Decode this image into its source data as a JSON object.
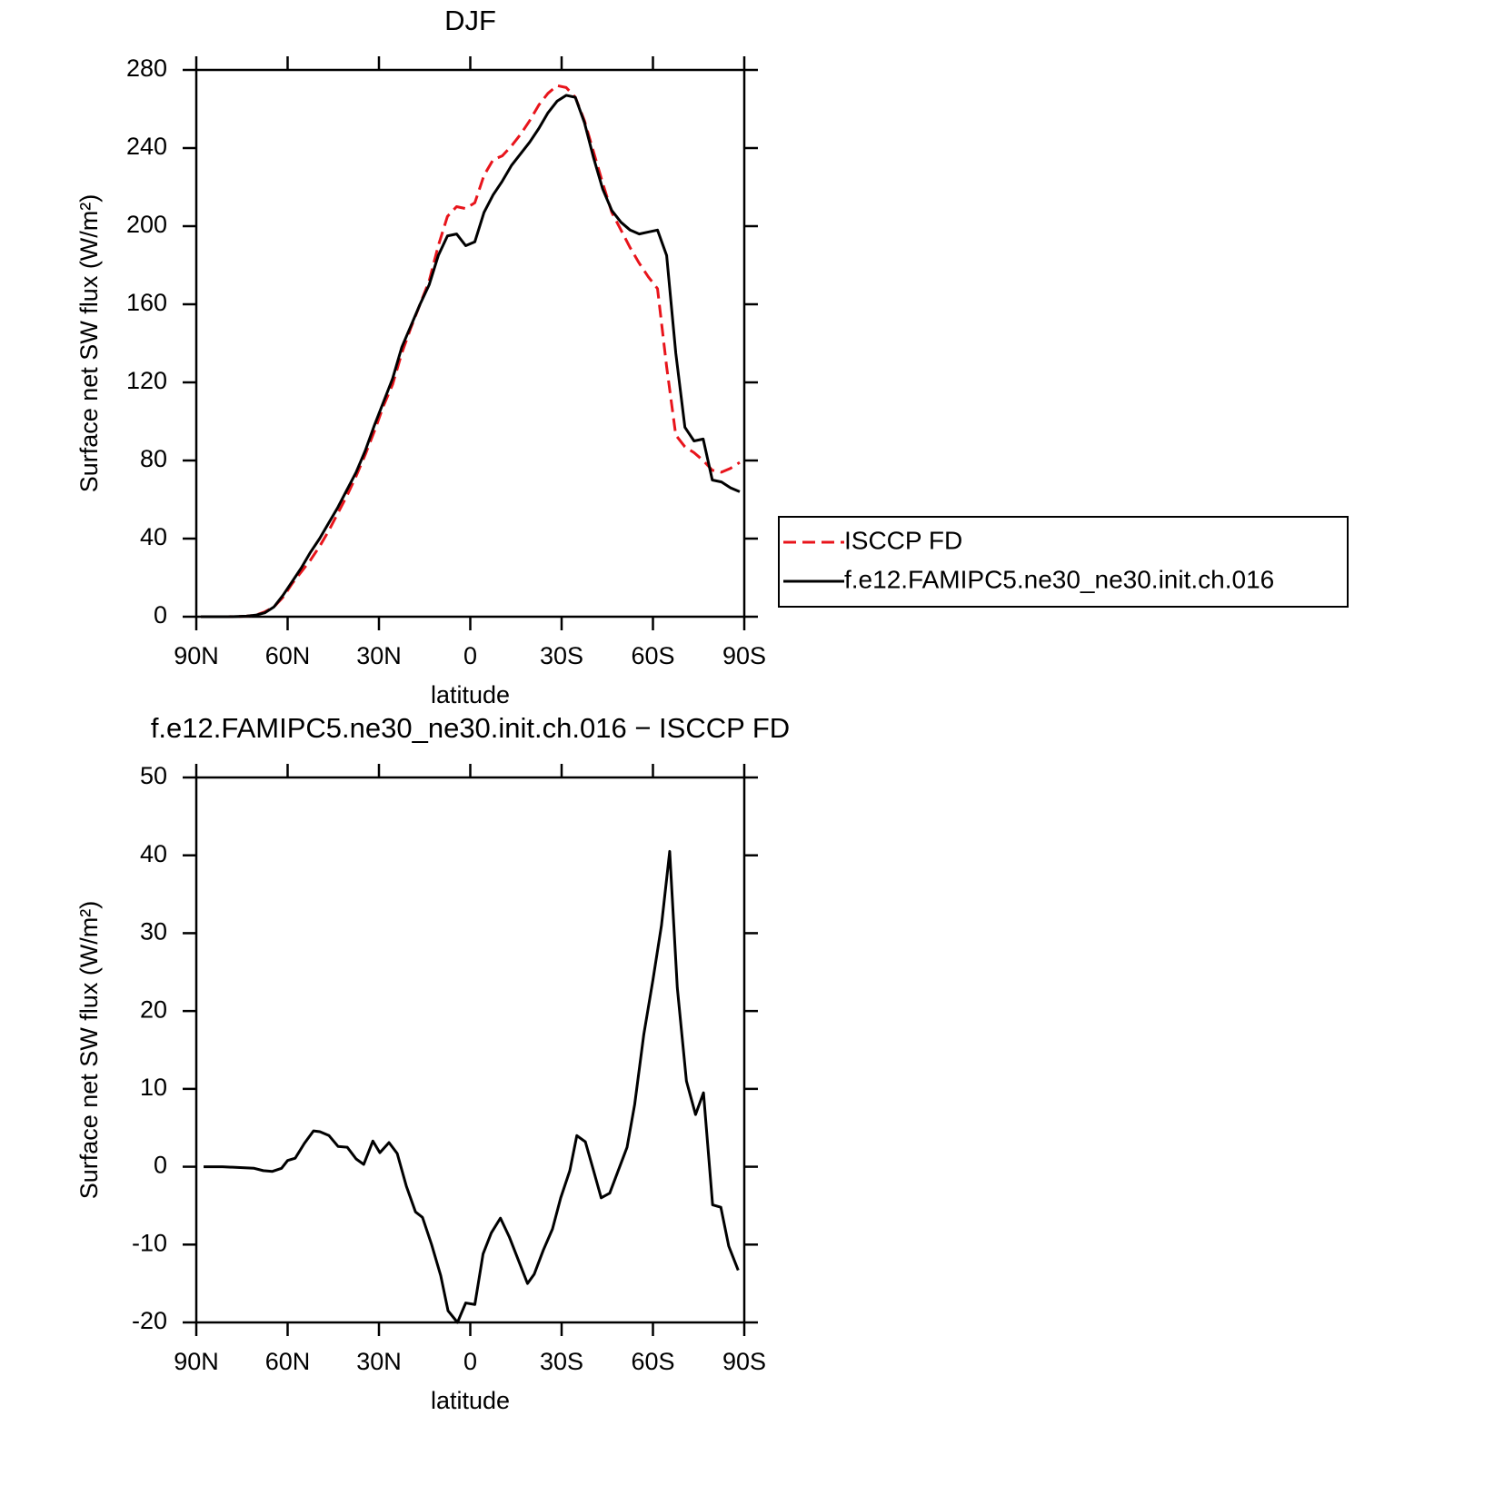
{
  "chart_data": [
    {
      "type": "line",
      "title": "DJF",
      "xlabel": "latitude",
      "ylabel": "Surface net SW flux (W/m²)",
      "x": [
        88.5,
        85.5,
        82.5,
        79.5,
        76.5,
        73.5,
        70.5,
        67.5,
        64.5,
        61.5,
        58.5,
        55.5,
        52.5,
        49.5,
        46.5,
        43.5,
        40.5,
        37.5,
        34.5,
        31.5,
        28.5,
        25.5,
        22.5,
        19.5,
        16.5,
        13.5,
        10.5,
        7.5,
        4.5,
        1.5,
        -1.5,
        -4.5,
        -7.5,
        -10.5,
        -13.5,
        -16.5,
        -19.5,
        -22.5,
        -25.5,
        -28.5,
        -31.5,
        -34.5,
        -37.5,
        -40.5,
        -43.5,
        -46.5,
        -49.5,
        -52.5,
        -55.5,
        -58.5,
        -61.5,
        -64.5,
        -67.5,
        -70.5,
        -73.5,
        -76.5,
        -79.5,
        -82.5,
        -85.5,
        -88.5
      ],
      "series": [
        {
          "name": "ISCCP FD",
          "color": "#e8141b",
          "dash": true,
          "values": [
            0,
            0,
            0,
            0,
            0.1,
            0.3,
            0.8,
            2.5,
            5,
            10,
            17,
            23,
            29,
            36,
            44,
            53,
            62,
            72,
            83,
            95,
            108,
            119,
            135,
            148,
            160,
            172,
            190,
            205,
            210,
            209,
            212,
            226,
            234,
            236,
            241,
            247,
            254,
            262,
            268,
            272,
            271,
            266,
            254,
            238,
            222,
            207,
            198,
            189,
            181,
            174,
            168,
            128,
            93,
            87,
            84,
            80,
            75,
            74,
            76,
            79
          ]
        },
        {
          "name": "f.e12.FAMIPC5.ne30_ne30.init.ch.016",
          "color": "#000000",
          "dash": false,
          "values": [
            0,
            0,
            0,
            0,
            0.1,
            0.3,
            0.8,
            2,
            5,
            11,
            18,
            25,
            33,
            40,
            48,
            56,
            65,
            74,
            85,
            98,
            110,
            122,
            138,
            149,
            160,
            170,
            185,
            195,
            196,
            190,
            192,
            207,
            216,
            223,
            231,
            237,
            243,
            250,
            258,
            264,
            267,
            266,
            253,
            235,
            219,
            208,
            202,
            198,
            196,
            197,
            198,
            185,
            135,
            97,
            90,
            91,
            70,
            69,
            66,
            64
          ]
        }
      ],
      "xlim": [
        90,
        -90
      ],
      "xticks": [
        {
          "value": 90,
          "label": "90N"
        },
        {
          "value": 60,
          "label": "60N"
        },
        {
          "value": 30,
          "label": "30N"
        },
        0,
        {
          "value": -30,
          "label": "30S"
        },
        {
          "value": -60,
          "label": "60S"
        },
        {
          "value": -90,
          "label": "90S"
        }
      ],
      "ylim": [
        0,
        280
      ],
      "yticks": [
        0,
        40,
        80,
        120,
        160,
        200,
        240,
        280
      ],
      "legend": "right"
    },
    {
      "type": "line",
      "title": "f.e12.FAMIPC5.ne30_ne30.init.ch.016 − ISCCP FD",
      "xlabel": "latitude",
      "ylabel": "Surface net SW flux (W/m²)",
      "x": [
        87.6,
        81.4,
        71,
        68,
        65,
        62,
        60,
        57.5,
        54.5,
        51.5,
        49.4,
        46.4,
        43.4,
        40.4,
        37.5,
        35,
        32,
        29.7,
        26.7,
        24,
        21,
        18,
        15.7,
        12.7,
        9.7,
        7.3,
        4.2,
        1.5,
        -1.5,
        -4.2,
        -6.9,
        -9.9,
        -12.8,
        -15.8,
        -18.8,
        -21,
        -24,
        -27,
        -29.7,
        -32.7,
        -35,
        -37.8,
        -40.5,
        -43,
        -45.8,
        -48.5,
        -51.5,
        -54,
        -57,
        -60,
        -62.8,
        -65.5,
        -68,
        -71,
        -74,
        -76.6,
        -79.6,
        -82.3,
        -84.9,
        -88
      ],
      "series": [
        {
          "name": "f.e12.FAMIPC5.ne30_ne30.init.ch.016 − ISCCP FD",
          "color": "#000000",
          "dash": false,
          "values": [
            0,
            0,
            -0.2,
            -0.5,
            -0.6,
            -0.2,
            0.8,
            1.1,
            3.0,
            4.6,
            4.5,
            4.0,
            2.6,
            2.5,
            1.0,
            0.3,
            3.3,
            1.8,
            3.1,
            1.7,
            -2.5,
            -5.8,
            -6.5,
            -10,
            -14,
            -18.5,
            -20,
            -17.5,
            -17.7,
            -11.2,
            -8.5,
            -6.6,
            -9,
            -12,
            -15,
            -13.8,
            -10.7,
            -8,
            -4,
            -0.5,
            4.0,
            3.2,
            -0.5,
            -4,
            -3.4,
            -0.6,
            2.5,
            8,
            17,
            24,
            31,
            40.5,
            23,
            11,
            6.7,
            9.5,
            -4.9,
            -5.2,
            -10.2,
            -13.3
          ]
        }
      ],
      "xlim": [
        90,
        -90
      ],
      "xticks": [
        {
          "value": 90,
          "label": "90N"
        },
        {
          "value": 60,
          "label": "60N"
        },
        {
          "value": 30,
          "label": "30N"
        },
        0,
        {
          "value": -30,
          "label": "30S"
        },
        {
          "value": -60,
          "label": "60S"
        },
        {
          "value": -90,
          "label": "90S"
        }
      ],
      "ylim": [
        -20,
        50
      ],
      "yticks": [
        -20,
        -10,
        0,
        10,
        20,
        30,
        40,
        50
      ]
    }
  ]
}
